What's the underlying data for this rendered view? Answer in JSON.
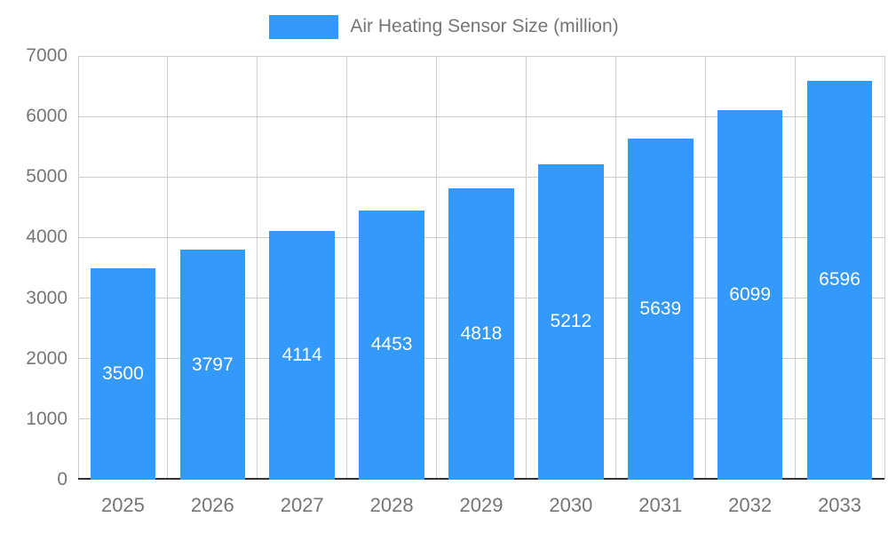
{
  "chart_data": {
    "type": "bar",
    "title": "Air Heating Sensor Size (million)",
    "legend_position": "top",
    "categories": [
      "2025",
      "2026",
      "2027",
      "2028",
      "2029",
      "2030",
      "2031",
      "2032",
      "2033"
    ],
    "values": [
      3500,
      3797,
      4114,
      4453,
      4818,
      5212,
      5639,
      6099,
      6596
    ],
    "xlabel": "",
    "ylabel": "",
    "ylim": [
      0,
      7000
    ],
    "yticks": [
      0,
      1000,
      2000,
      3000,
      4000,
      5000,
      6000,
      7000
    ],
    "grid": true,
    "bar_color": "#3399fb",
    "value_label_color": "#ffffff",
    "axis_text_color": "#757575",
    "gridline_color": "#cccccc",
    "baseline_color": "#333333",
    "background_color": "#ffffff"
  }
}
